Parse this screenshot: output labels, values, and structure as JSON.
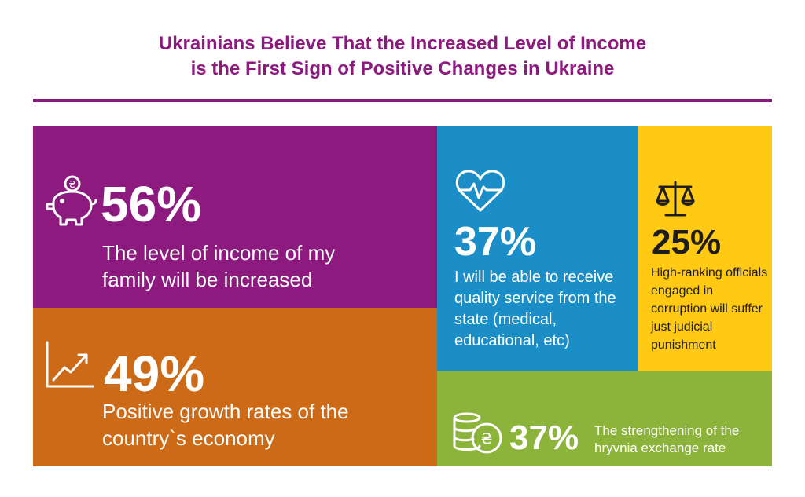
{
  "title": {
    "line1": "Ukrainians Believe That the Increased Level of Income",
    "line2": "is the First Sign of Positive Changes in Ukraine"
  },
  "colors": {
    "title": "#8c1a7f",
    "income": "#8c1a7f",
    "growth": "#cd6a17",
    "service": "#1b8ec8",
    "justice": "#ffc914",
    "hryvnia": "#8cb43a"
  },
  "stats": {
    "income": {
      "value": "56%",
      "text": "The level of income of my family will be increased",
      "icon": "piggy-bank-icon"
    },
    "growth": {
      "value": "49%",
      "text": "Positive growth rates of the country`s economy",
      "icon": "growth-chart-icon"
    },
    "service": {
      "value": "37%",
      "text": "I will be able to receive quality service from the state (medical, educational, etc)",
      "icon": "heartbeat-icon"
    },
    "justice": {
      "value": "25%",
      "text": "High-ranking officials engaged in corruption will suffer just judicial punishment",
      "icon": "scales-icon"
    },
    "hryvnia": {
      "value": "37%",
      "text": "The strengthening of the hryvnia exchange rate",
      "icon": "coins-icon"
    }
  }
}
